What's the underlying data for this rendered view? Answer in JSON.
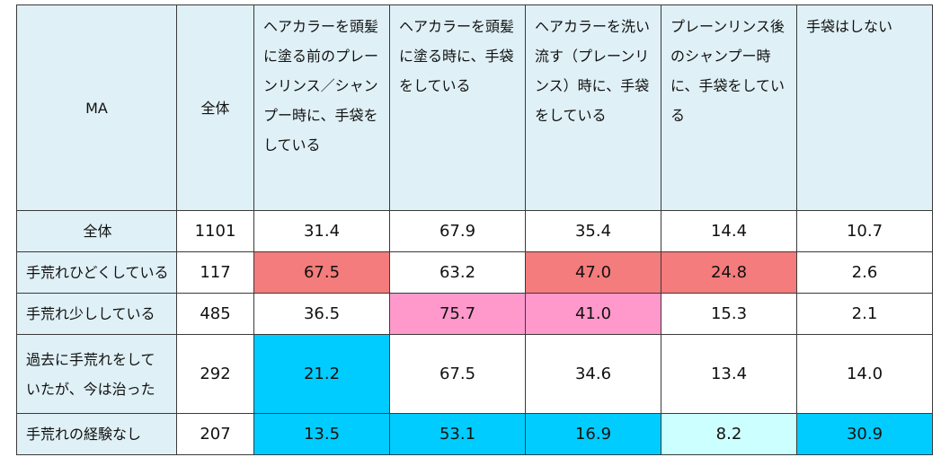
{
  "chart_data": {
    "type": "table",
    "corner_label": "MA",
    "total_label": "全体",
    "columns": [
      "ヘアカラーを頭髪に塗る前のプレーンリンス／シャンプー時に、手袋をしている",
      "ヘアカラーを頭髪に塗る時に、手袋をしている",
      "ヘアカラーを洗い流す（プレーンリンス）時に、手袋をしている",
      "プレーンリンス後のシャンプー時に、手袋をしている",
      "手袋はしない"
    ],
    "rows": [
      {
        "label": "全体",
        "total": "1101",
        "values": [
          "31.4",
          "67.9",
          "35.4",
          "14.4",
          "10.7"
        ]
      },
      {
        "label": "手荒れひどくしている",
        "total": "117",
        "values": [
          "67.5",
          "63.2",
          "47.0",
          "24.8",
          "2.6"
        ]
      },
      {
        "label": "手荒れ少ししている",
        "total": "485",
        "values": [
          "36.5",
          "75.7",
          "41.0",
          "15.3",
          "2.1"
        ]
      },
      {
        "label": "過去に手荒れをしていたが、今は治った",
        "total": "292",
        "values": [
          "21.2",
          "67.5",
          "34.6",
          "13.4",
          "14.0"
        ]
      },
      {
        "label": "手荒れの経験なし",
        "total": "207",
        "values": [
          "13.5",
          "53.1",
          "16.9",
          "8.2",
          "30.9"
        ]
      }
    ],
    "cell_colors": [
      [
        "#ffffff",
        "#ffffff",
        "#ffffff",
        "#ffffff",
        "#ffffff"
      ],
      [
        "#f47c7c",
        "#ffffff",
        "#f47c7c",
        "#f47c7c",
        "#ffffff"
      ],
      [
        "#ffffff",
        "#ff99cc",
        "#ff99cc",
        "#ffffff",
        "#ffffff"
      ],
      [
        "#00ccff",
        "#ffffff",
        "#ffffff",
        "#ffffff",
        "#ffffff"
      ],
      [
        "#00ccff",
        "#00ccff",
        "#00ccff",
        "#ccffff",
        "#00ccff"
      ]
    ]
  }
}
